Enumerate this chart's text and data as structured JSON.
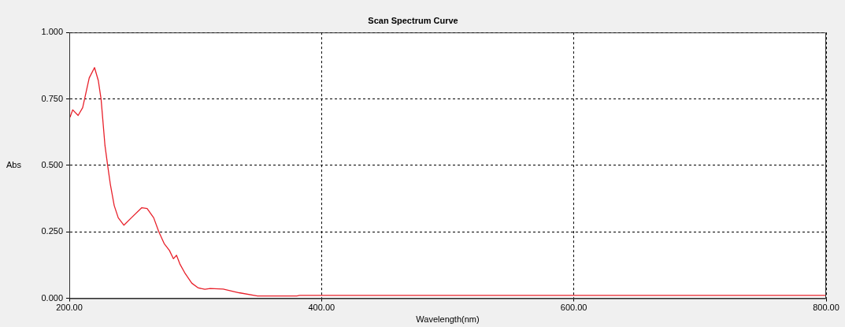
{
  "chart_data": {
    "type": "line",
    "title": "Scan Spectrum Curve",
    "xlabel": "Wavelength(nm)",
    "ylabel": "Abs",
    "xlim": [
      200,
      800
    ],
    "ylim": [
      0,
      1
    ],
    "xticks": [
      {
        "value": 200,
        "label": "200.00"
      },
      {
        "value": 400,
        "label": "400.00"
      },
      {
        "value": 600,
        "label": "600.00"
      },
      {
        "value": 800,
        "label": "800.00"
      }
    ],
    "yticks": [
      {
        "value": 0,
        "label": "0.000"
      },
      {
        "value": 0.25,
        "label": "0.250"
      },
      {
        "value": 0.5,
        "label": "0.500"
      },
      {
        "value": 0.75,
        "label": "0.750"
      },
      {
        "value": 1,
        "label": "1.000"
      }
    ],
    "grid": true,
    "marker": "none",
    "line_style": "solid",
    "series": [
      {
        "color": "#e8202a",
        "x": [
          200.6,
          202.7,
          207,
          210.6,
          215.8,
          220,
          223,
          225.2,
          228.3,
          230.4,
          232.5,
          235.6,
          238.8,
          243.3,
          249.2,
          257.5,
          261.7,
          266.9,
          271,
          275.2,
          279.4,
          282.5,
          285,
          287.7,
          291.9,
          297.1,
          302.3,
          307.5,
          311.7,
          322,
          334.6,
          349.2,
          380.4,
          382.5,
          500,
          650,
          800
        ],
        "values": [
          0.681,
          0.709,
          0.688,
          0.717,
          0.829,
          0.868,
          0.819,
          0.749,
          0.574,
          0.5,
          0.43,
          0.349,
          0.303,
          0.275,
          0.303,
          0.341,
          0.338,
          0.303,
          0.25,
          0.206,
          0.18,
          0.149,
          0.162,
          0.129,
          0.093,
          0.057,
          0.039,
          0.034,
          0.037,
          0.035,
          0.021,
          0.009,
          0.009,
          0.011,
          0.011,
          0.011,
          0.011
        ]
      }
    ]
  }
}
